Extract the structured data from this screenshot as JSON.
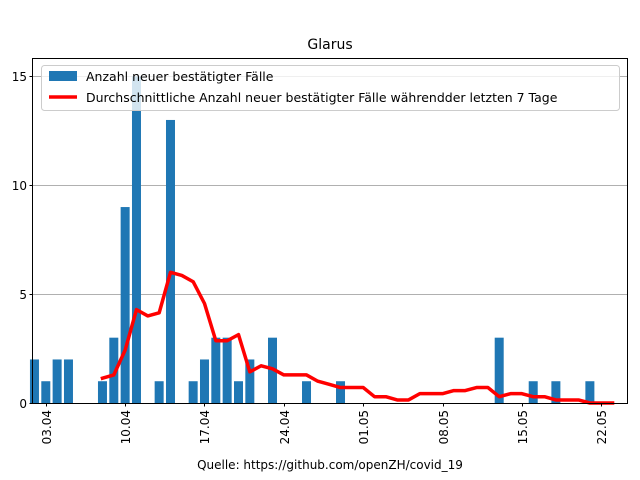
{
  "chart_data": {
    "type": "bar",
    "title": "Glarus",
    "xlabel": "",
    "ylabel": "",
    "source": "Quelle: https://github.com/openZH/covid_19",
    "ylim": [
      0,
      15.8
    ],
    "yticks": [
      0,
      5,
      10,
      15
    ],
    "grid": "horizontal",
    "legend_position": "top-left",
    "x_start_day": 0,
    "x_end_day": 50,
    "xtick_days": [
      0,
      7,
      14,
      21,
      28,
      35,
      42,
      49
    ],
    "xtick_labels": [
      "03.04",
      "10.04",
      "17.04",
      "24.04",
      "01.05",
      "08.05",
      "15.05",
      "22.05"
    ],
    "series": [
      {
        "name": "Anzahl neuer bestätigter Fälle",
        "type": "bar",
        "color": "#1f77b4",
        "days": [
          -1,
          0,
          1,
          2,
          5,
          6,
          7,
          8,
          10,
          11,
          13,
          14,
          15,
          16,
          17,
          18,
          20,
          23,
          26,
          40,
          43,
          45,
          48
        ],
        "values": [
          2,
          1,
          2,
          2,
          1,
          3,
          9,
          15,
          1,
          13,
          1,
          2,
          3,
          3,
          1,
          2,
          3,
          1,
          1,
          3,
          1,
          1,
          1
        ]
      },
      {
        "name": "Durchschnittliche Anzahl neuer bestätigter Fälle währendder letzten 7 Tage",
        "type": "line",
        "color": "#ff0000",
        "days": [
          5,
          6,
          7,
          8,
          9,
          10,
          11,
          12,
          13,
          14,
          15,
          16,
          17,
          18,
          19,
          20,
          21,
          22,
          23,
          24,
          25,
          26,
          27,
          28,
          29,
          30,
          31,
          32,
          33,
          34,
          35,
          36,
          37,
          38,
          39,
          40,
          41,
          42,
          43,
          44,
          45,
          46,
          47,
          48,
          49,
          50
        ],
        "values": [
          1.14,
          1.29,
          2.43,
          4.29,
          4.0,
          4.14,
          6.0,
          5.86,
          5.57,
          4.57,
          2.86,
          2.86,
          3.14,
          1.43,
          1.71,
          1.57,
          1.29,
          1.29,
          1.29,
          1.0,
          0.86,
          0.71,
          0.71,
          0.71,
          0.29,
          0.29,
          0.14,
          0.14,
          0.43,
          0.43,
          0.43,
          0.57,
          0.57,
          0.71,
          0.71,
          0.29,
          0.43,
          0.43,
          0.29,
          0.29,
          0.14,
          0.14,
          0.14,
          0.0,
          0.0,
          0.0
        ]
      }
    ]
  }
}
